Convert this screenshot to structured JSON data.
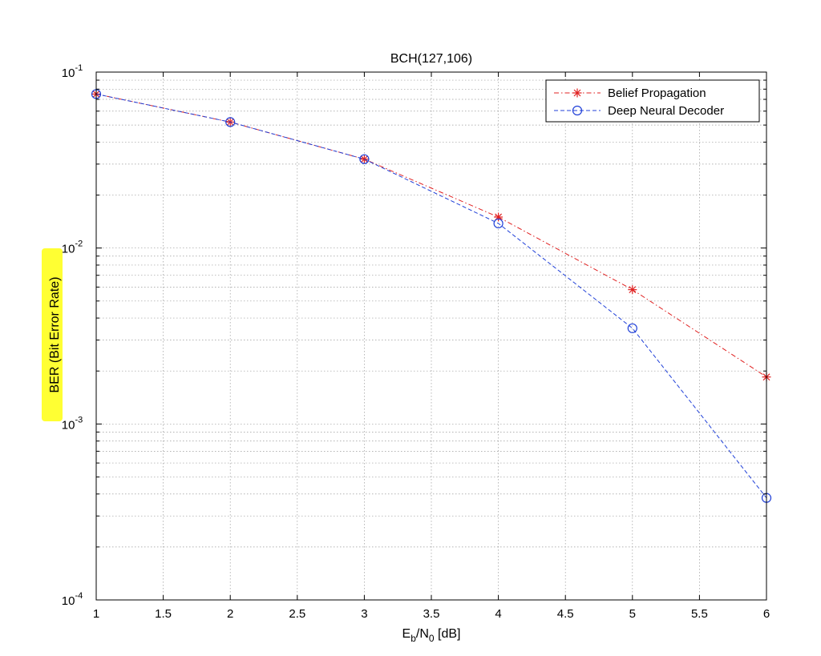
{
  "chart_data": {
    "type": "line",
    "title": "BCH(127,106)",
    "xlabel": {
      "base": "E",
      "sub1": "b",
      "mid": "/N",
      "sub2": "0",
      "tail": " [dB]"
    },
    "ylabel": "BER (Bit Error Rate)",
    "xlim": [
      1,
      6
    ],
    "ylim": [
      0.0001,
      0.1
    ],
    "yscale": "log",
    "grid": true,
    "x_ticks": [
      "1",
      "1.5",
      "2",
      "2.5",
      "3",
      "3.5",
      "4",
      "4.5",
      "5",
      "5.5",
      "6"
    ],
    "y_ticks": [
      {
        "base": "10",
        "exp": "-1"
      },
      {
        "base": "10",
        "exp": "-2"
      },
      {
        "base": "10",
        "exp": "-3"
      },
      {
        "base": "10",
        "exp": "-4"
      }
    ],
    "legend_position": "top-right",
    "ylabel_highlight_color": "#ffff33",
    "series": [
      {
        "name": "Belief Propagation",
        "color": "#e02020",
        "marker": "asterisk",
        "line_style": "dash-dot",
        "x": [
          1,
          2,
          3,
          4,
          5,
          6
        ],
        "y": [
          0.075,
          0.052,
          0.032,
          0.015,
          0.0058,
          0.00185
        ]
      },
      {
        "name": "Deep Neural Decoder",
        "color": "#2040d8",
        "marker": "circle",
        "line_style": "dashed",
        "x": [
          1,
          2,
          3,
          4,
          5,
          6
        ],
        "y": [
          0.075,
          0.052,
          0.032,
          0.0138,
          0.0035,
          0.00038
        ]
      }
    ]
  }
}
